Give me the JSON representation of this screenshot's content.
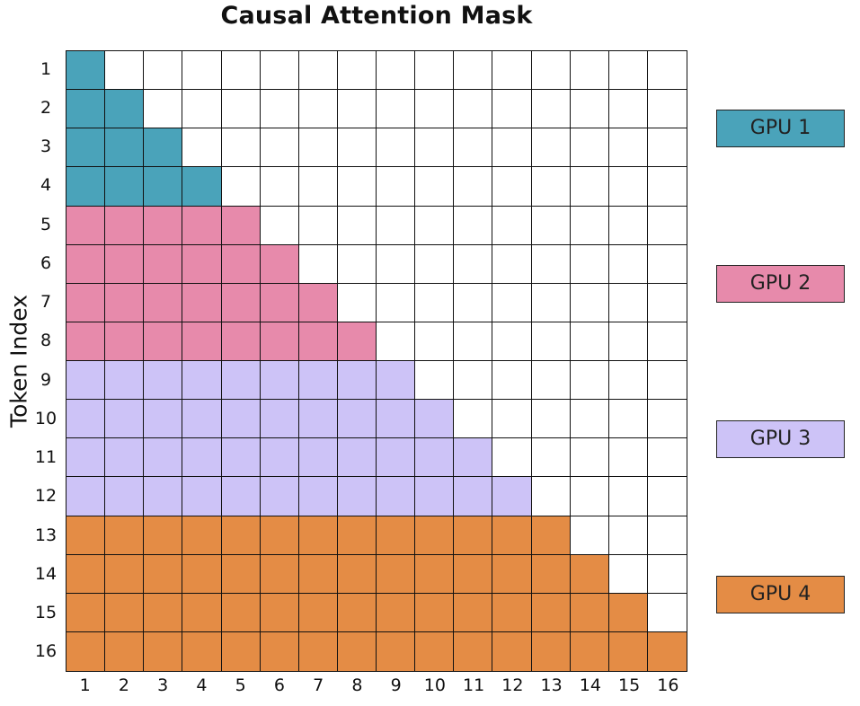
{
  "title": "Causal Attention Mask",
  "y_axis_label": "Token Index",
  "row_labels": [
    "1",
    "2",
    "3",
    "4",
    "5",
    "6",
    "7",
    "8",
    "9",
    "10",
    "11",
    "12",
    "13",
    "14",
    "15",
    "16"
  ],
  "col_labels": [
    "1",
    "2",
    "3",
    "4",
    "5",
    "6",
    "7",
    "8",
    "9",
    "10",
    "11",
    "12",
    "13",
    "14",
    "15",
    "16"
  ],
  "groups": [
    {
      "label": "GPU 1",
      "color": "#4aa3ba",
      "rows": [
        1,
        4
      ]
    },
    {
      "label": "GPU 2",
      "color": "#e78aab",
      "rows": [
        5,
        8
      ]
    },
    {
      "label": "GPU 3",
      "color": "#cdc3f7",
      "rows": [
        9,
        12
      ]
    },
    {
      "label": "GPU 4",
      "color": "#e48c45",
      "rows": [
        13,
        16
      ]
    }
  ],
  "empty_color": "#ffffff"
}
